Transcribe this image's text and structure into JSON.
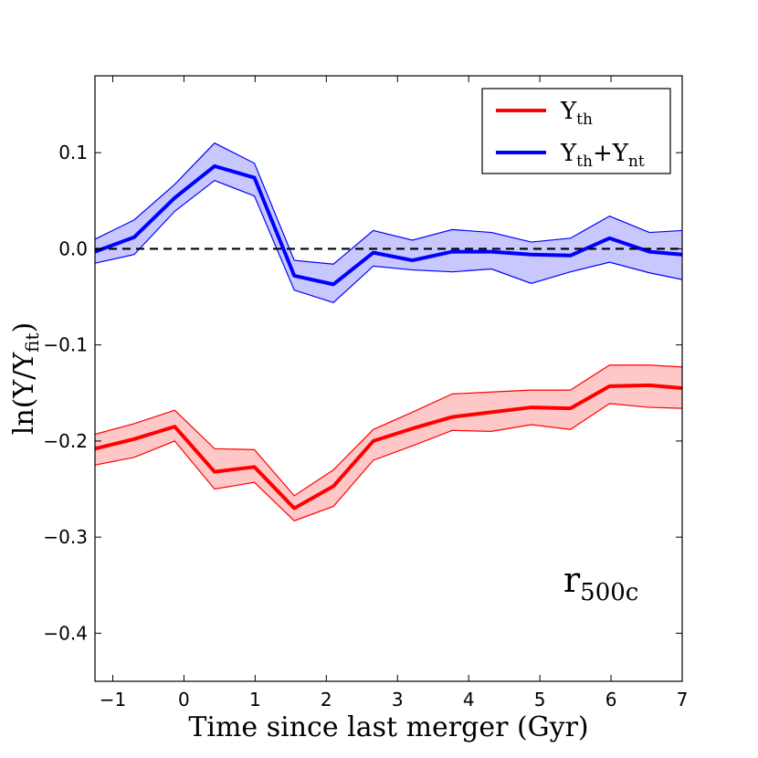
{
  "chart_data": {
    "type": "line",
    "title": "",
    "xlabel": "Time since last merger (Gyr)",
    "ylabel": "ln(Y/Y_fit)",
    "ylabel_parts": {
      "main": "ln(Y/Y",
      "sub": "fit",
      "close": ")"
    },
    "xlim": [
      -1.25,
      7
    ],
    "ylim": [
      -0.45,
      0.18
    ],
    "xticks": [
      -1,
      0,
      1,
      2,
      3,
      4,
      5,
      6,
      7
    ],
    "xtick_labels": [
      "−1",
      "0",
      "1",
      "2",
      "3",
      "4",
      "5",
      "6",
      "7"
    ],
    "yticks": [
      0.1,
      0.0,
      -0.1,
      -0.2,
      -0.3,
      -0.4
    ],
    "ytick_labels": [
      "0.1",
      "0.0",
      "−0.1",
      "−0.2",
      "−0.3",
      "−0.4"
    ],
    "reference_line": {
      "y": 0.0,
      "style": "dashed",
      "color": "#000000"
    },
    "legend_position": "top-right",
    "annotation": {
      "text": "r",
      "sub": "500c",
      "position": "bottom-right"
    },
    "x": [
      -1.25,
      -0.7,
      -0.13,
      0.43,
      0.99,
      1.55,
      2.1,
      2.66,
      3.21,
      3.77,
      4.32,
      4.88,
      5.43,
      5.98,
      6.54,
      7.0
    ],
    "series": [
      {
        "name": "Y_th",
        "legend_main": "Y",
        "legend_sub": "th",
        "color": "#ff0000",
        "fill_color": "#ffc8c8",
        "values": [
          -0.208,
          -0.198,
          -0.185,
          -0.232,
          -0.227,
          -0.27,
          -0.247,
          -0.2,
          -0.187,
          -0.175,
          -0.17,
          -0.165,
          -0.166,
          -0.143,
          -0.142,
          -0.145
        ],
        "lower": [
          -0.225,
          -0.217,
          -0.2,
          -0.25,
          -0.243,
          -0.283,
          -0.268,
          -0.22,
          -0.205,
          -0.189,
          -0.19,
          -0.183,
          -0.188,
          -0.161,
          -0.165,
          -0.166
        ],
        "upper": [
          -0.193,
          -0.182,
          -0.168,
          -0.208,
          -0.209,
          -0.257,
          -0.23,
          -0.188,
          -0.17,
          -0.151,
          -0.149,
          -0.147,
          -0.147,
          -0.121,
          -0.121,
          -0.123
        ]
      },
      {
        "name": "Y_th+Y_nt",
        "legend_main": "Y",
        "legend_sub": "th",
        "legend_mid": "+Y",
        "legend_sub2": "nt",
        "color": "#0000ff",
        "fill_color": "#c8c8ff",
        "values": [
          -0.003,
          0.012,
          0.053,
          0.086,
          0.074,
          -0.028,
          -0.037,
          -0.004,
          -0.012,
          -0.003,
          -0.003,
          -0.006,
          -0.007,
          0.011,
          -0.003,
          -0.006
        ],
        "lower": [
          -0.015,
          -0.006,
          0.039,
          0.071,
          0.055,
          -0.043,
          -0.056,
          -0.018,
          -0.022,
          -0.024,
          -0.021,
          -0.036,
          -0.024,
          -0.014,
          -0.025,
          -0.032
        ],
        "upper": [
          0.01,
          0.03,
          0.067,
          0.11,
          0.089,
          -0.012,
          -0.016,
          0.019,
          0.009,
          0.02,
          0.017,
          0.007,
          0.011,
          0.034,
          0.017,
          0.019
        ]
      }
    ]
  }
}
